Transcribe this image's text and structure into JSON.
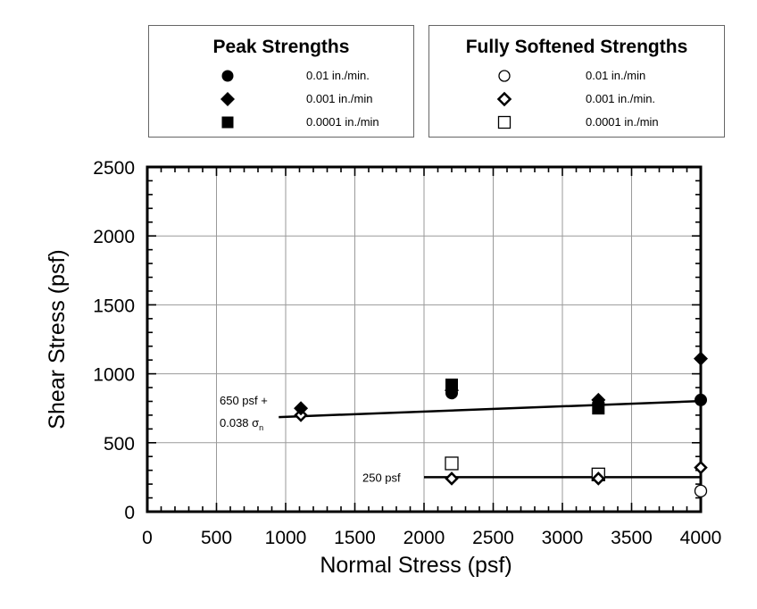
{
  "legend_peak": {
    "title": "Peak Strengths",
    "items": [
      {
        "marker": "filled-circle",
        "label": "0.01 in./min."
      },
      {
        "marker": "filled-diamond",
        "label": "0.001 in./min"
      },
      {
        "marker": "filled-square",
        "label": "0.0001 in./min"
      }
    ]
  },
  "legend_soft": {
    "title": "Fully Softened Strengths",
    "items": [
      {
        "marker": "open-circle",
        "label": "0.01 in./min"
      },
      {
        "marker": "open-diamond",
        "label": "0.001 in./min."
      },
      {
        "marker": "open-square",
        "label": "0.0001 in./min"
      }
    ]
  },
  "chart_data": {
    "type": "scatter",
    "xlabel": "Normal Stress (psf)",
    "ylabel": "Shear Stress (psf)",
    "xlim": [
      0,
      4000
    ],
    "ylim": [
      0,
      2500
    ],
    "xticks": [
      "0",
      "500",
      "1000",
      "1500",
      "2000",
      "2500",
      "3000",
      "3500",
      "4000"
    ],
    "yticks": [
      "0",
      "500",
      "1000",
      "1500",
      "2000",
      "2500"
    ],
    "grid": true,
    "series": [
      {
        "name": "Peak Strengths 0.01 in./min.",
        "marker": "filled-circle",
        "points": [
          [
            2200,
            860
          ],
          [
            3260,
            780
          ],
          [
            4000,
            810
          ]
        ]
      },
      {
        "name": "Peak Strengths 0.001 in./min",
        "marker": "filled-diamond",
        "points": [
          [
            1110,
            750
          ],
          [
            2200,
            880
          ],
          [
            3260,
            810
          ],
          [
            4000,
            1110
          ]
        ]
      },
      {
        "name": "Peak Strengths 0.0001 in./min",
        "marker": "filled-square",
        "points": [
          [
            2200,
            920
          ],
          [
            3260,
            750
          ]
        ]
      },
      {
        "name": "Fully Softened Strengths 0.01 in./min",
        "marker": "open-circle",
        "points": [
          [
            4000,
            150
          ]
        ]
      },
      {
        "name": "Fully Softened Strengths 0.001 in./min.",
        "marker": "open-diamond",
        "points": [
          [
            1110,
            700
          ],
          [
            2200,
            240
          ],
          [
            3260,
            240
          ],
          [
            4000,
            320
          ]
        ]
      },
      {
        "name": "Fully Softened Strengths 0.0001 in./min",
        "marker": "open-square",
        "points": [
          [
            2200,
            350
          ],
          [
            3260,
            270
          ]
        ]
      }
    ],
    "lines": [
      {
        "label_line1": "650 psf +",
        "label_line2": "0.038 σ",
        "label_subscript": "n",
        "intercept": 650,
        "slope": 0.038,
        "x_start": 950,
        "x_end": 4000
      },
      {
        "label_line1": "250 psf",
        "intercept": 250,
        "slope": 0,
        "x_start": 2000,
        "x_end": 4000
      }
    ]
  }
}
